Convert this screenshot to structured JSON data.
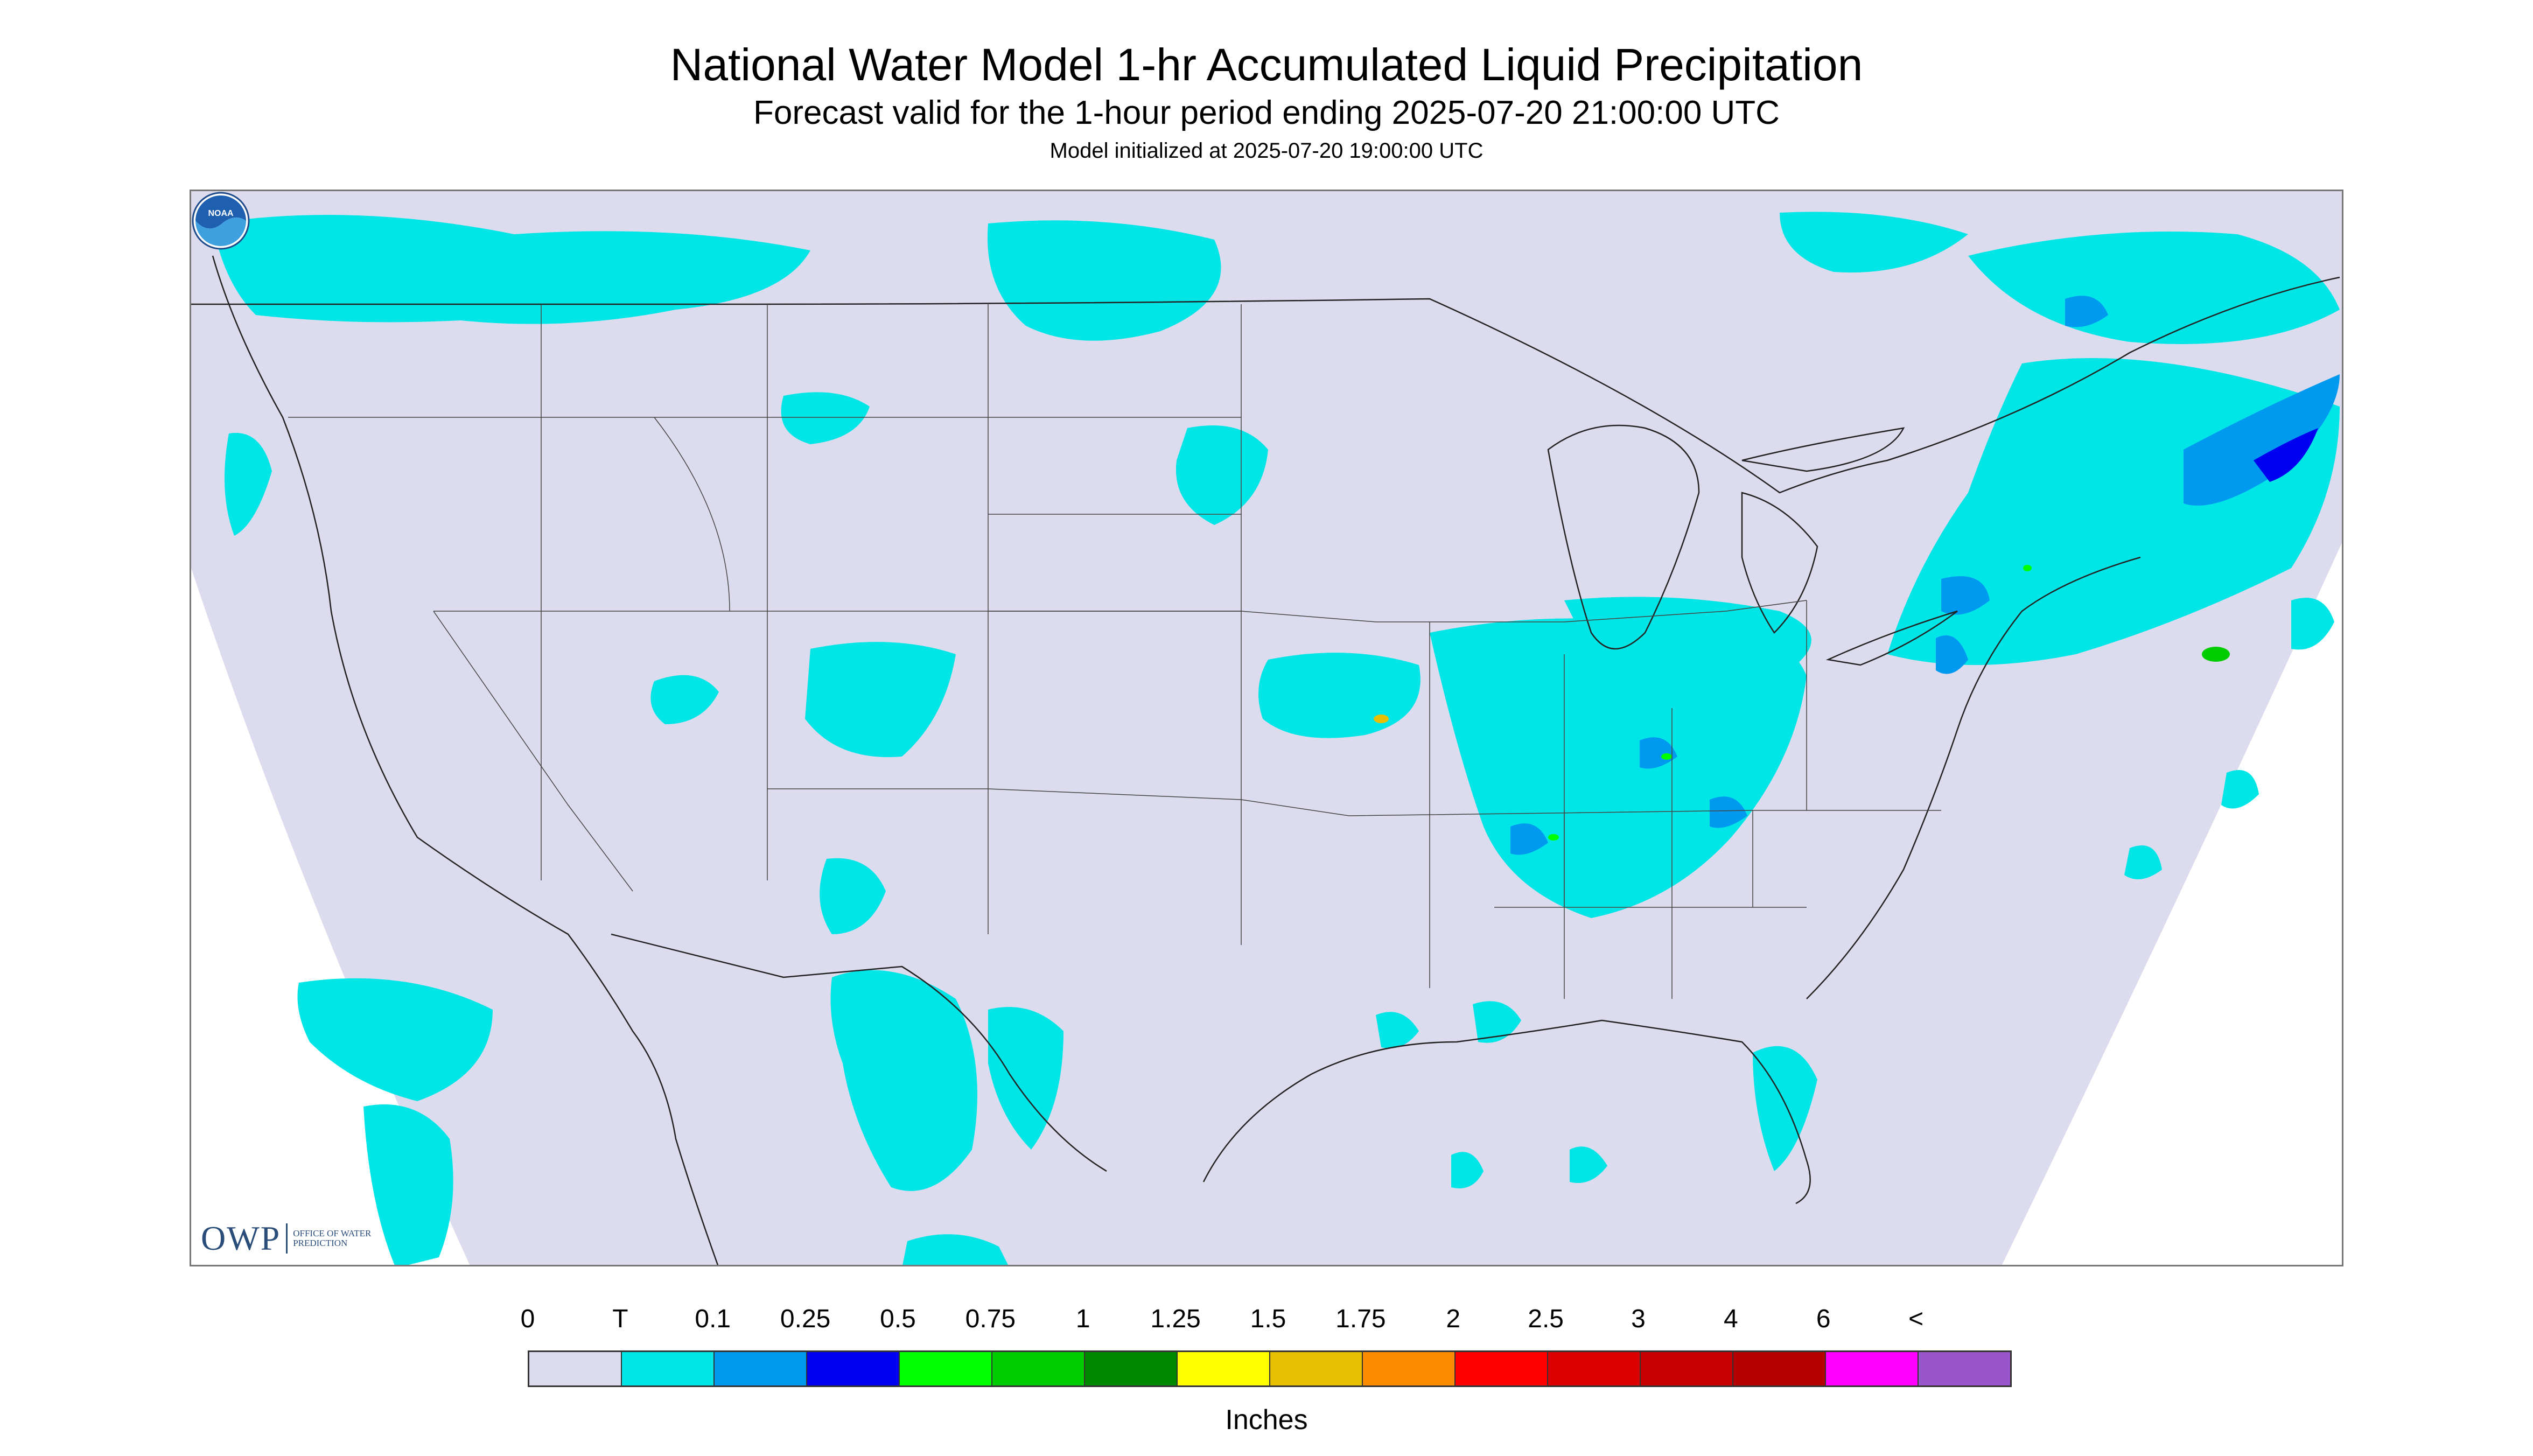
{
  "header": {
    "title": "National Water Model 1-hr Accumulated Liquid Precipitation",
    "subtitle": "Forecast valid for the 1-hour period ending 2025-07-20 21:00:00 UTC",
    "init": "Model initialized at 2025-07-20 19:00:00 UTC"
  },
  "legend": {
    "labels": [
      "0",
      "T",
      "0.1",
      "0.25",
      "0.5",
      "0.75",
      "1",
      "1.25",
      "1.5",
      "1.75",
      "2",
      "2.5",
      "3",
      "4",
      "6",
      "<"
    ],
    "colors": [
      "#dcdcee",
      "#00e5e5",
      "#0099f0",
      "#0000f0",
      "#00ff00",
      "#00cc00",
      "#008800",
      "#ffff00",
      "#e6bf00",
      "#ff8c00",
      "#ff0000",
      "#dd0000",
      "#c80000",
      "#b40000",
      "#ff00ff",
      "#9955cc"
    ],
    "units": "Inches"
  },
  "logos": {
    "owp_mark": "OWP",
    "owp_text": "OFFICE OF WATER PREDICTION",
    "noaa_icon": "noaa-logo-icon",
    "noaa_text": "NOAA"
  },
  "map": {
    "background_color": "#dcdcee",
    "outside_domain_color": "#ffffff",
    "border_color": "#333333"
  }
}
